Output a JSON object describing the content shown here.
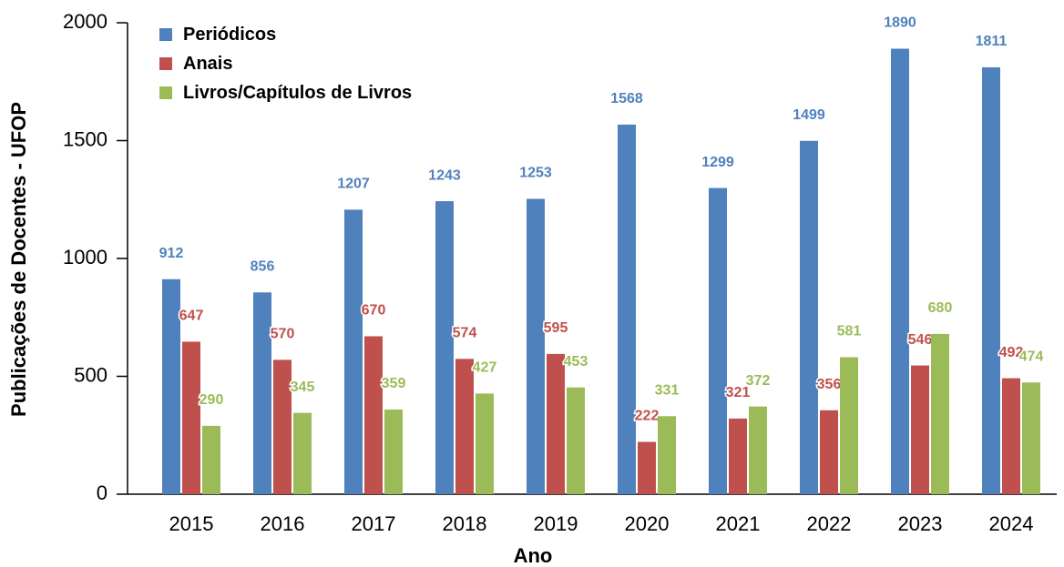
{
  "chart_data": {
    "type": "bar",
    "xlabel": "Ano",
    "ylabel": "Publicações de Docentes - UFOP",
    "categories": [
      "2015",
      "2016",
      "2017",
      "2018",
      "2019",
      "2020",
      "2021",
      "2022",
      "2023",
      "2024"
    ],
    "series": [
      {
        "name": "Periódicos",
        "color": "#4f81bd",
        "values": [
          912,
          856,
          1207,
          1243,
          1253,
          1568,
          1299,
          1499,
          1890,
          1811
        ]
      },
      {
        "name": "Anais",
        "color": "#c0504d",
        "values": [
          647,
          570,
          670,
          574,
          595,
          222,
          321,
          356,
          546,
          492
        ]
      },
      {
        "name": "Livros/Capítulos de Livros",
        "color": "#9bbb59",
        "values": [
          290,
          345,
          359,
          427,
          453,
          331,
          372,
          581,
          680,
          474
        ]
      }
    ],
    "ylim": [
      0,
      2000
    ],
    "yticks": [
      0,
      500,
      1000,
      1500,
      2000
    ],
    "grid": false,
    "legend": "upper left"
  }
}
